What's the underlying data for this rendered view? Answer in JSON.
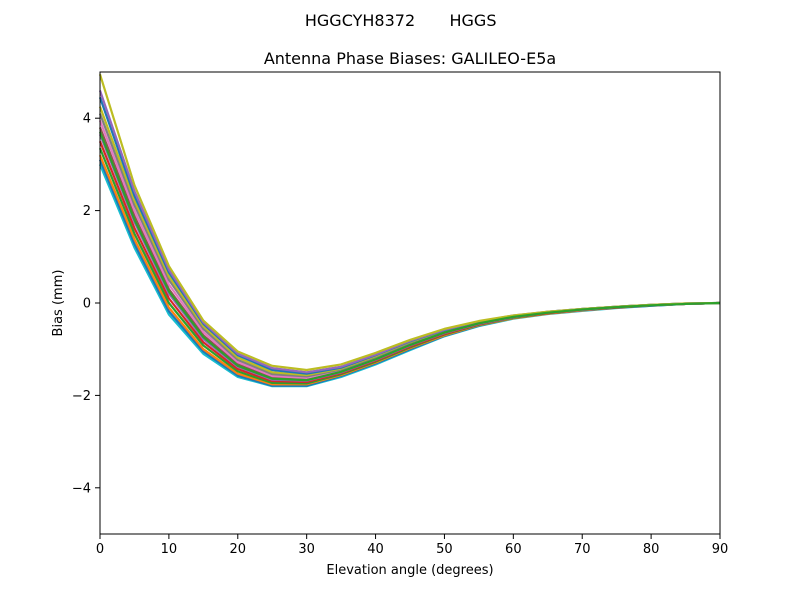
{
  "figure": {
    "suptitle_left": "HGGCYH8372",
    "suptitle_right": "HGGS"
  },
  "chart_data": {
    "type": "line",
    "title": "Antenna Phase Biases: GALILEO-E5a",
    "xlabel": "Elevation angle (degrees)",
    "ylabel": "Bias (mm)",
    "xlim": [
      0,
      90
    ],
    "ylim": [
      -5,
      5
    ],
    "x_ticks": [
      "0",
      "10",
      "20",
      "30",
      "40",
      "50",
      "60",
      "70",
      "80",
      "90"
    ],
    "y_ticks": [
      "−4",
      "−2",
      "0",
      "2",
      "4"
    ],
    "grid": false,
    "x": [
      0,
      5,
      10,
      15,
      20,
      25,
      30,
      35,
      40,
      45,
      50,
      55,
      60,
      65,
      70,
      75,
      80,
      85,
      90
    ],
    "series": [
      {
        "color": "#17becf",
        "values": [
          3.0,
          1.2,
          -0.25,
          -1.1,
          -1.6,
          -1.8,
          -1.8,
          -1.6,
          -1.33,
          -1.02,
          -0.72,
          -0.5,
          -0.34,
          -0.24,
          -0.17,
          -0.11,
          -0.06,
          -0.02,
          0.0
        ]
      },
      {
        "color": "#1f77b4",
        "values": [
          3.1,
          1.28,
          -0.18,
          -1.05,
          -1.57,
          -1.79,
          -1.79,
          -1.58,
          -1.31,
          -1.0,
          -0.71,
          -0.49,
          -0.33,
          -0.23,
          -0.16,
          -0.1,
          -0.06,
          -0.02,
          0.0
        ]
      },
      {
        "color": "#ff7f0e",
        "values": [
          3.2,
          1.38,
          -0.1,
          -1.0,
          -1.53,
          -1.76,
          -1.76,
          -1.56,
          -1.29,
          -0.98,
          -0.7,
          -0.48,
          -0.33,
          -0.23,
          -0.16,
          -0.1,
          -0.05,
          -0.02,
          0.0
        ]
      },
      {
        "color": "#2ca02c",
        "values": [
          3.35,
          1.5,
          0.0,
          -0.92,
          -1.48,
          -1.73,
          -1.74,
          -1.54,
          -1.27,
          -0.96,
          -0.68,
          -0.47,
          -0.32,
          -0.22,
          -0.15,
          -0.1,
          -0.05,
          -0.02,
          0.0
        ]
      },
      {
        "color": "#d62728",
        "values": [
          3.5,
          1.62,
          0.1,
          -0.85,
          -1.43,
          -1.69,
          -1.71,
          -1.52,
          -1.25,
          -0.94,
          -0.67,
          -0.46,
          -0.31,
          -0.22,
          -0.15,
          -0.1,
          -0.05,
          -0.02,
          0.0
        ]
      },
      {
        "color": "#9467bd",
        "values": [
          3.65,
          1.75,
          0.2,
          -0.78,
          -1.38,
          -1.66,
          -1.68,
          -1.5,
          -1.23,
          -0.92,
          -0.65,
          -0.45,
          -0.31,
          -0.21,
          -0.15,
          -0.09,
          -0.05,
          -0.02,
          0.0
        ]
      },
      {
        "color": "#8c564b",
        "values": [
          3.8,
          1.88,
          0.3,
          -0.7,
          -1.33,
          -1.62,
          -1.65,
          -1.48,
          -1.21,
          -0.9,
          -0.64,
          -0.44,
          -0.3,
          -0.21,
          -0.14,
          -0.09,
          -0.05,
          -0.02,
          0.0
        ]
      },
      {
        "color": "#e377c2",
        "values": [
          3.95,
          2.0,
          0.4,
          -0.63,
          -1.28,
          -1.58,
          -1.62,
          -1.46,
          -1.19,
          -0.88,
          -0.62,
          -0.43,
          -0.29,
          -0.2,
          -0.14,
          -0.09,
          -0.05,
          -0.02,
          0.0
        ]
      },
      {
        "color": "#7f7f7f",
        "values": [
          4.1,
          2.12,
          0.5,
          -0.56,
          -1.23,
          -1.54,
          -1.59,
          -1.44,
          -1.17,
          -0.86,
          -0.61,
          -0.42,
          -0.29,
          -0.2,
          -0.14,
          -0.09,
          -0.05,
          -0.02,
          0.0
        ]
      },
      {
        "color": "#bcbd22",
        "values": [
          4.25,
          2.22,
          0.58,
          -0.5,
          -1.18,
          -1.5,
          -1.56,
          -1.42,
          -1.15,
          -0.84,
          -0.6,
          -0.41,
          -0.28,
          -0.2,
          -0.13,
          -0.08,
          -0.04,
          -0.01,
          0.0
        ]
      },
      {
        "color": "#1f77b4",
        "values": [
          4.45,
          2.32,
          0.66,
          -0.45,
          -1.13,
          -1.45,
          -1.53,
          -1.4,
          -1.13,
          -0.83,
          -0.59,
          -0.4,
          -0.28,
          -0.19,
          -0.13,
          -0.08,
          -0.04,
          -0.01,
          0.0
        ]
      },
      {
        "color": "#9467bd",
        "values": [
          4.6,
          2.42,
          0.72,
          -0.42,
          -1.1,
          -1.41,
          -1.5,
          -1.38,
          -1.12,
          -0.82,
          -0.58,
          -0.4,
          -0.27,
          -0.19,
          -0.13,
          -0.08,
          -0.04,
          -0.01,
          0.0
        ]
      },
      {
        "color": "#bcbd22",
        "values": [
          4.95,
          2.55,
          0.8,
          -0.38,
          -1.05,
          -1.36,
          -1.45,
          -1.33,
          -1.08,
          -0.8,
          -0.56,
          -0.39,
          -0.27,
          -0.19,
          -0.13,
          -0.08,
          -0.04,
          -0.01,
          0.0
        ]
      },
      {
        "color": "#2ca02c",
        "values": [
          3.7,
          1.8,
          0.25,
          -0.74,
          -1.36,
          -1.64,
          -1.67,
          -1.49,
          -1.22,
          -0.91,
          -0.64,
          -0.44,
          -0.3,
          -0.21,
          -0.14,
          -0.09,
          -0.05,
          -0.02,
          0.0
        ]
      }
    ]
  }
}
